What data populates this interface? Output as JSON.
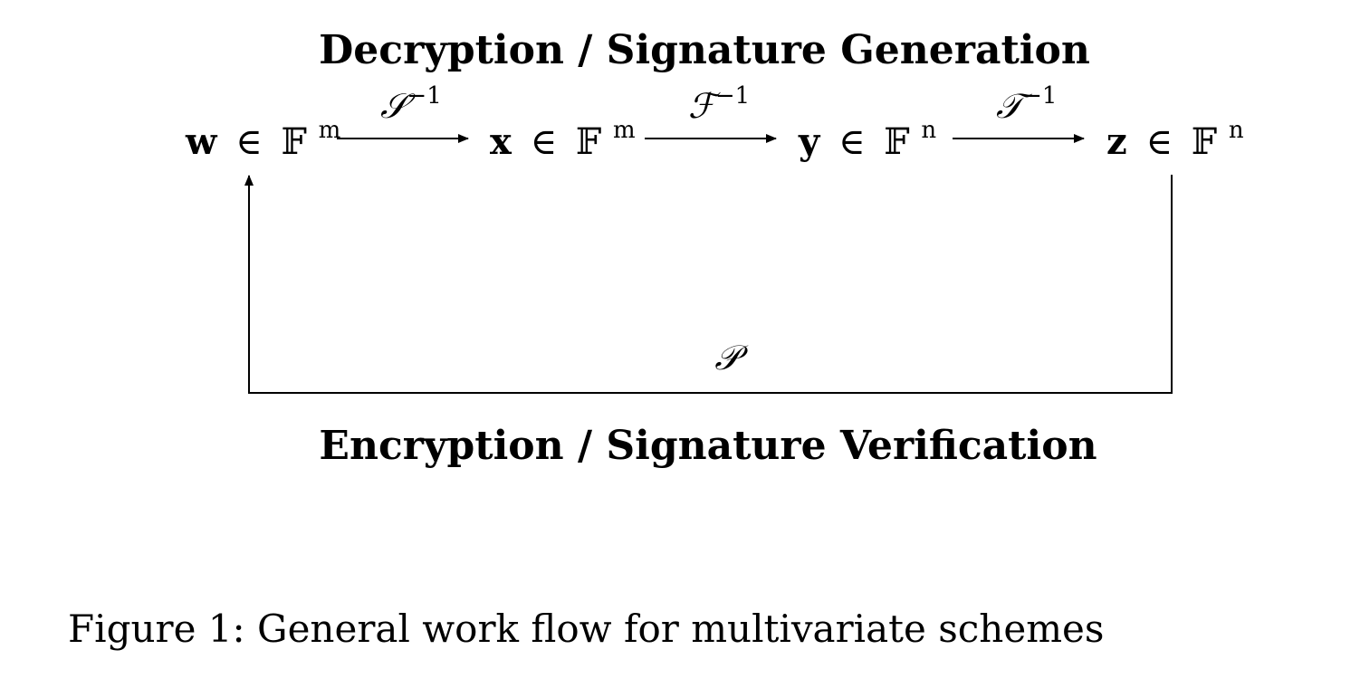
{
  "title_top": "Decryption / Signature Generation",
  "title_bottom": "Encryption / Signature Verification",
  "nodes": [
    {
      "var": "w",
      "rel": "∈",
      "field": "𝔽",
      "exp": "m"
    },
    {
      "var": "x",
      "rel": "∈",
      "field": "𝔽",
      "exp": "m"
    },
    {
      "var": "y",
      "rel": "∈",
      "field": "𝔽",
      "exp": "n"
    },
    {
      "var": "z",
      "rel": "∈",
      "field": "𝔽",
      "exp": "n"
    }
  ],
  "maps": [
    {
      "symbol": "𝒮",
      "exp": "−1"
    },
    {
      "symbol": "ℱ",
      "exp": "−1"
    },
    {
      "symbol": "𝒯",
      "exp": "−1"
    }
  ],
  "public_map": "𝒫",
  "caption": "Figure 1: General work flow for multivariate schemes"
}
